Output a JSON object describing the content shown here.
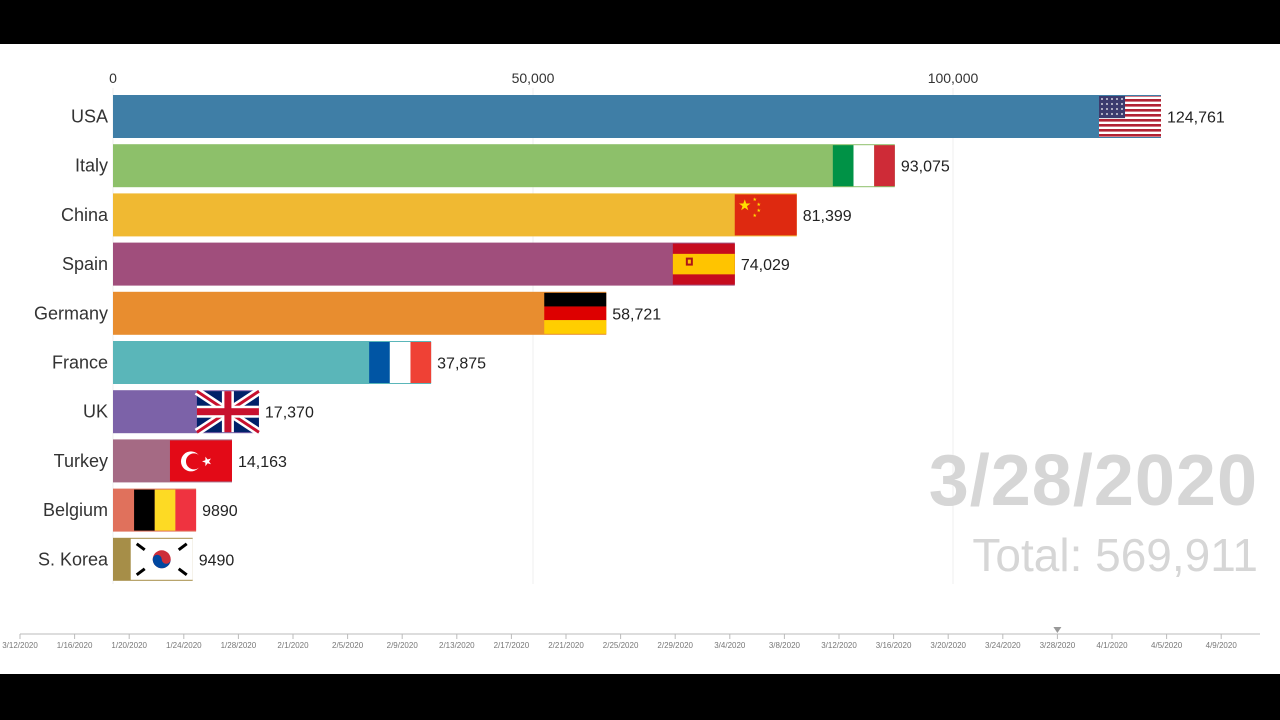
{
  "overlay": {
    "date": "3/28/2020",
    "total": "Total: 569,911"
  },
  "timeline": {
    "labels": [
      "3/12/2020",
      "1/16/2020",
      "1/20/2020",
      "1/24/2020",
      "1/28/2020",
      "2/1/2020",
      "2/5/2020",
      "2/9/2020",
      "2/13/2020",
      "2/17/2020",
      "2/21/2020",
      "2/25/2020",
      "2/29/2020",
      "3/4/2020",
      "3/8/2020",
      "3/12/2020",
      "3/16/2020",
      "3/20/2020",
      "3/24/2020",
      "3/28/2020",
      "4/1/2020",
      "4/5/2020",
      "4/9/2020"
    ],
    "current": "3/28/2020"
  },
  "chart_data": {
    "type": "bar",
    "orientation": "horizontal",
    "xlim": [
      0,
      130000
    ],
    "xticks": [
      0,
      50000,
      100000
    ],
    "xtick_labels": [
      "0",
      "50,000",
      "100,000"
    ],
    "grid": true,
    "categories": [
      "USA",
      "Italy",
      "China",
      "Spain",
      "Germany",
      "France",
      "UK",
      "Turkey",
      "Belgium",
      "S. Korea"
    ],
    "values": [
      124761,
      93075,
      81399,
      74029,
      58721,
      37875,
      17370,
      14163,
      9890,
      9490
    ],
    "value_labels": [
      "124,761",
      "93,075",
      "81,399",
      "74,029",
      "58,721",
      "37,875",
      "17,370",
      "14,163",
      "9890",
      "9490"
    ],
    "colors": [
      "#3f7ea6",
      "#8dc06a",
      "#f0b932",
      "#a04e7c",
      "#e88d2f",
      "#5ab6b9",
      "#7c62a8",
      "#a56a84",
      "#e0715c",
      "#a68e48"
    ],
    "flags": [
      "usa-flag",
      "italy-flag",
      "china-flag",
      "spain-flag",
      "germany-flag",
      "france-flag",
      "uk-flag",
      "turkey-flag",
      "belgium-flag",
      "south-korea-flag"
    ]
  }
}
